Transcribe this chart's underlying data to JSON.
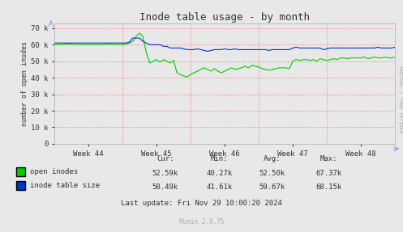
{
  "title": "Inode table usage - by month",
  "ylabel": "number of open inodes",
  "bg_color": "#e8e8e8",
  "plot_bg_color": "#e8e8e8",
  "grid_color": "#ff9999",
  "yticks": [
    0,
    10000,
    20000,
    30000,
    40000,
    50000,
    60000,
    70000
  ],
  "ytick_labels": [
    "0",
    "10 k",
    "20 k",
    "30 k",
    "40 k",
    "50 k",
    "60 k",
    "70 k"
  ],
  "xtick_labels": [
    "Week 44",
    "Week 45",
    "Week 46",
    "Week 47",
    "Week 48"
  ],
  "ylim": [
    0,
    73000
  ],
  "xlim": [
    0,
    100
  ],
  "green_line_color": "#00cc00",
  "blue_line_color": "#0033cc",
  "arrow_color": "#9999cc",
  "rrdtool_text": "RRDTOOL / TOBI OETIKER",
  "munin_text": "Munin 2.0.75",
  "stats_header": [
    "Cur:",
    "Min:",
    "Avg:",
    "Max:"
  ],
  "stats_green": [
    "52.59k",
    "40.27k",
    "52.50k",
    "67.37k"
  ],
  "stats_blue": [
    "58.49k",
    "41.61k",
    "59.67k",
    "68.15k"
  ],
  "label_green": "open inodes",
  "label_blue": "inode table size",
  "last_update": "Last update: Fri Nov 29 10:00:20 2024",
  "green_x": [
    0,
    2,
    4,
    6,
    8,
    10,
    12,
    14,
    16,
    18,
    20,
    21,
    22,
    23,
    24,
    25,
    26,
    27,
    28,
    29,
    30,
    31,
    32,
    33,
    34,
    35,
    36,
    37,
    38,
    39,
    40,
    41,
    42,
    43,
    44,
    45,
    46,
    47,
    48,
    49,
    50,
    51,
    52,
    53,
    54,
    55,
    56,
    57,
    58,
    59,
    60,
    61,
    62,
    63,
    64,
    65,
    66,
    67,
    68,
    69,
    70,
    71,
    72,
    73,
    74,
    75,
    76,
    77,
    78,
    79,
    80,
    81,
    82,
    83,
    84,
    85,
    86,
    87,
    88,
    89,
    90,
    91,
    92,
    93,
    94,
    95,
    96,
    97,
    98,
    99,
    100
  ],
  "green_y": [
    60000,
    60000,
    60500,
    60000,
    60000,
    60000,
    60000,
    60000,
    60200,
    60000,
    60000,
    60500,
    61000,
    62000,
    65000,
    67000,
    65000,
    55000,
    49000,
    50000,
    51000,
    49500,
    51000,
    50000,
    49000,
    50500,
    43000,
    42000,
    41000,
    40500,
    42000,
    43000,
    44000,
    45000,
    46000,
    45000,
    44000,
    45500,
    44000,
    43000,
    44000,
    45000,
    46000,
    45000,
    45500,
    46000,
    47000,
    46000,
    47500,
    47000,
    46500,
    45500,
    45000,
    44500,
    45000,
    45500,
    46000,
    46000,
    46000,
    45500,
    50000,
    51000,
    50500,
    51000,
    51000,
    50500,
    51000,
    50000,
    51500,
    51000,
    50500,
    51000,
    51500,
    51000,
    52000,
    52000,
    51500,
    52000,
    52000,
    52000,
    52000,
    52500,
    51500,
    52000,
    52500,
    52000,
    52000,
    52500,
    52000,
    52000,
    52500
  ],
  "blue_x": [
    0,
    2,
    4,
    6,
    8,
    10,
    12,
    14,
    16,
    18,
    20,
    21,
    22,
    23,
    24,
    25,
    26,
    27,
    28,
    29,
    30,
    31,
    32,
    33,
    34,
    35,
    36,
    37,
    38,
    39,
    40,
    41,
    42,
    43,
    44,
    45,
    46,
    47,
    48,
    49,
    50,
    51,
    52,
    53,
    54,
    55,
    56,
    57,
    58,
    59,
    60,
    61,
    62,
    63,
    64,
    65,
    66,
    67,
    68,
    69,
    70,
    71,
    72,
    73,
    74,
    75,
    76,
    77,
    78,
    79,
    80,
    81,
    82,
    83,
    84,
    85,
    86,
    87,
    88,
    89,
    90,
    91,
    92,
    93,
    94,
    95,
    96,
    97,
    98,
    99,
    100
  ],
  "blue_y": [
    61000,
    61000,
    61000,
    61000,
    61000,
    61000,
    61000,
    61000,
    61000,
    61000,
    61000,
    61000,
    61500,
    64000,
    64000,
    64000,
    62000,
    61000,
    60000,
    60000,
    60000,
    60000,
    59000,
    59000,
    58000,
    58000,
    58000,
    58000,
    57500,
    57000,
    57000,
    57000,
    57500,
    57000,
    56500,
    56000,
    56500,
    57000,
    57000,
    57000,
    57500,
    57000,
    57000,
    57500,
    57000,
    57000,
    57000,
    57000,
    57000,
    57000,
    57000,
    57000,
    57000,
    56500,
    57000,
    57000,
    57000,
    57000,
    57000,
    57000,
    58000,
    58500,
    58000,
    58000,
    58000,
    58000,
    58000,
    58000,
    58000,
    57000,
    57500,
    58000,
    58000,
    58000,
    58000,
    58000,
    58000,
    58000,
    58000,
    58000,
    58000,
    58000,
    58000,
    58000,
    58000,
    58500,
    58000,
    58000,
    58000,
    58000,
    58500
  ]
}
